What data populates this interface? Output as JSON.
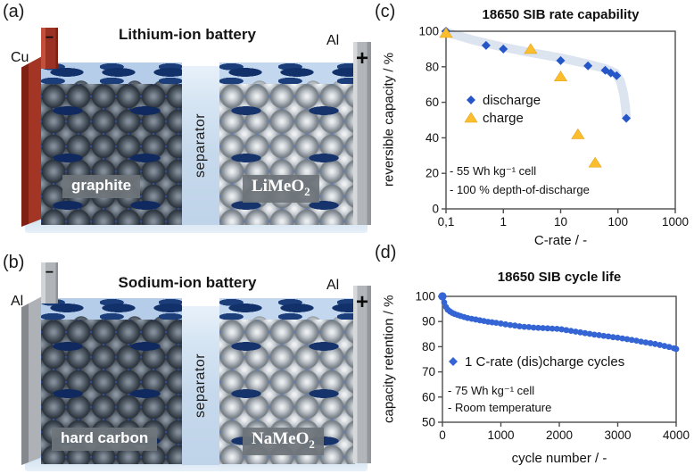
{
  "colors": {
    "discharge_blue": "#2456c8",
    "charge_yellow": "#fcbe2d",
    "cycle_dot_blue": "#3565d4",
    "trend_band": "#dbe4ef",
    "copper_collector_red": "#a33524",
    "aluminium_collector_gray": "#b2b6ba",
    "electrolyte_blue": "#2e5ed6",
    "separator_blue": "#cfe0f0"
  },
  "panel_a": {
    "label": "(a)",
    "title": "Lithium-ion battery",
    "neg_material": "Cu",
    "neg_sign": "−",
    "pos_material": "Al",
    "pos_sign": "+",
    "anode": "graphite",
    "cathode_base": "LiMeO",
    "cathode_sub": "2",
    "separator": "separator"
  },
  "panel_b": {
    "label": "(b)",
    "title": "Sodium-ion battery",
    "neg_material": "Al",
    "neg_sign": "−",
    "pos_material": "Al",
    "pos_sign": "+",
    "anode": "hard carbon",
    "cathode_base": "NaMeO",
    "cathode_sub": "2",
    "separator": "separator"
  },
  "panel_c": {
    "label": "(c)",
    "chart_data": {
      "type": "scatter",
      "title": "18650 SIB rate capability",
      "xlabel": "C-rate / -",
      "ylabel": "reversible capacity / %",
      "x_scale": "log",
      "xlim": [
        0.1,
        1000
      ],
      "ylim": [
        0,
        100
      ],
      "x_ticks": [
        0.1,
        1,
        10,
        100,
        1000
      ],
      "x_tick_labels": [
        "0,1",
        "1",
        "10",
        "100",
        "1000"
      ],
      "y_ticks": [
        0,
        20,
        40,
        60,
        80,
        100
      ],
      "grid": false,
      "legend_position": "inside-left",
      "series": [
        {
          "name": "discharge",
          "marker": "diamond",
          "color": "#2456c8",
          "points": [
            [
              0.1,
              100
            ],
            [
              0.5,
              92
            ],
            [
              1,
              90
            ],
            [
              10,
              83.5
            ],
            [
              30,
              80.5
            ],
            [
              60,
              78
            ],
            [
              75,
              76.5
            ],
            [
              95,
              75
            ],
            [
              140,
              51
            ]
          ]
        },
        {
          "name": "charge",
          "marker": "triangle",
          "color": "#fcbe2d",
          "edge": "#e2a113",
          "points": [
            [
              0.1,
              99
            ],
            [
              3,
              90
            ],
            [
              10,
              74.5
            ],
            [
              20,
              42
            ],
            [
              40,
              26
            ]
          ]
        }
      ],
      "trend_band": {
        "color": "#dbe4ef",
        "points": [
          [
            0.1,
            99.5
          ],
          [
            0.3,
            95
          ],
          [
            1,
            91
          ],
          [
            3,
            88
          ],
          [
            10,
            85
          ],
          [
            30,
            81.5
          ],
          [
            60,
            79
          ],
          [
            90,
            76.5
          ],
          [
            110,
            72
          ],
          [
            125,
            65
          ],
          [
            135,
            58
          ],
          [
            140,
            52
          ]
        ]
      },
      "annotations": [
        "- 55 Wh kg⁻¹ cell",
        "- 100 % depth-of-discharge"
      ]
    }
  },
  "panel_d": {
    "label": "(d)",
    "chart_data": {
      "type": "scatter",
      "title": "18650 SIB cycle life",
      "xlabel": "cycle number / -",
      "ylabel": "capacity retention / %",
      "x_scale": "linear",
      "xlim": [
        0,
        4000
      ],
      "ylim": [
        50,
        100
      ],
      "x_ticks": [
        0,
        1000,
        2000,
        3000,
        4000
      ],
      "y_ticks": [
        50,
        60,
        70,
        80,
        90,
        100
      ],
      "grid": false,
      "legend_position": "inside-left",
      "series": [
        {
          "name": "1 C-rate (dis)charge cycles",
          "marker": "circle",
          "legend_marker": "diamond",
          "color": "#3565d4",
          "points": [
            [
              0,
              100
            ],
            [
              30,
              97.6
            ],
            [
              60,
              95.8
            ],
            [
              90,
              94.7
            ],
            [
              130,
              94.0
            ],
            [
              170,
              93.4
            ],
            [
              210,
              93.0
            ],
            [
              260,
              92.6
            ],
            [
              310,
              92.2
            ],
            [
              370,
              91.8
            ],
            [
              430,
              91.4
            ],
            [
              500,
              91.1
            ],
            [
              570,
              90.8
            ],
            [
              640,
              90.5
            ],
            [
              710,
              90.2
            ],
            [
              780,
              89.9
            ],
            [
              850,
              89.7
            ],
            [
              920,
              89.5
            ],
            [
              1000,
              89.2
            ],
            [
              1080,
              88.9
            ],
            [
              1160,
              88.6
            ],
            [
              1240,
              88.4
            ],
            [
              1320,
              88.1
            ],
            [
              1400,
              87.9
            ],
            [
              1480,
              87.8
            ],
            [
              1560,
              87.6
            ],
            [
              1640,
              87.5
            ],
            [
              1720,
              87.4
            ],
            [
              1800,
              87.3
            ],
            [
              1880,
              87.2
            ],
            [
              1960,
              87.1
            ],
            [
              2040,
              86.9
            ],
            [
              2120,
              86.6
            ],
            [
              2200,
              86.3
            ],
            [
              2280,
              86.0
            ],
            [
              2360,
              85.7
            ],
            [
              2440,
              85.4
            ],
            [
              2520,
              85.1
            ],
            [
              2600,
              84.8
            ],
            [
              2680,
              84.6
            ],
            [
              2760,
              84.3
            ],
            [
              2840,
              84.1
            ],
            [
              2920,
              83.8
            ],
            [
              3000,
              83.6
            ],
            [
              3080,
              83.3
            ],
            [
              3160,
              83.0
            ],
            [
              3240,
              82.7
            ],
            [
              3320,
              82.4
            ],
            [
              3400,
              82.0
            ],
            [
              3480,
              81.7
            ],
            [
              3560,
              81.4
            ],
            [
              3640,
              81.1
            ],
            [
              3720,
              80.7
            ],
            [
              3800,
              80.3
            ],
            [
              3880,
              79.9
            ],
            [
              3960,
              79.4
            ],
            [
              4000,
              79.1
            ]
          ]
        }
      ],
      "annotations": [
        "- 75 Wh kg⁻¹ cell",
        "- Room temperature"
      ]
    }
  }
}
